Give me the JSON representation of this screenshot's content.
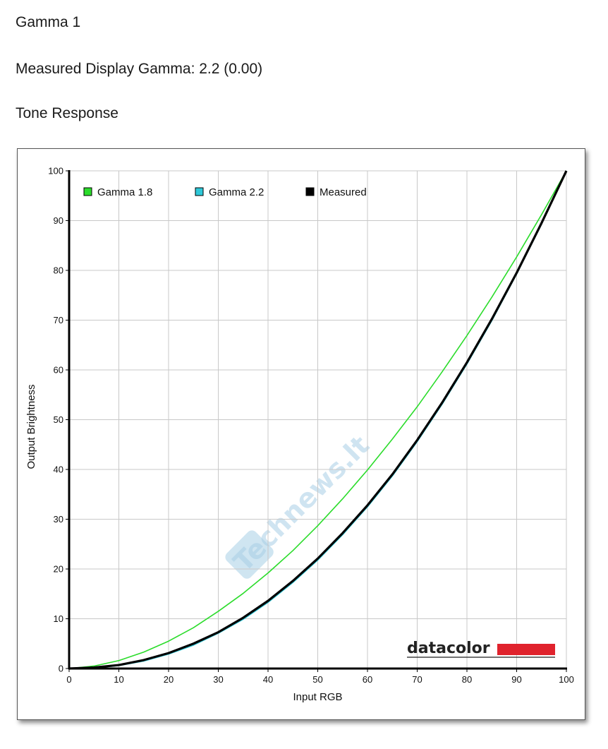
{
  "page": {
    "title": "Gamma 1",
    "measured_gamma": "Measured Display Gamma: 2.2 (0.00)",
    "section": "Tone Response"
  },
  "brand": {
    "logo_text": "datacolor",
    "logo_accent_color": "#e0232d"
  },
  "watermark": {
    "text": "Technews.lt",
    "color": "#a8cfe6"
  },
  "chart_data": {
    "type": "line",
    "xlabel": "Input RGB",
    "ylabel": "Output Brightness",
    "xlim": [
      0,
      100
    ],
    "ylim": [
      0,
      100
    ],
    "xticks": [
      0,
      10,
      20,
      30,
      40,
      50,
      60,
      70,
      80,
      90,
      100
    ],
    "yticks": [
      0,
      10,
      20,
      30,
      40,
      50,
      60,
      70,
      80,
      90,
      100
    ],
    "grid": true,
    "legend_position": "top-left",
    "x": [
      0,
      5,
      10,
      15,
      20,
      25,
      30,
      35,
      40,
      45,
      50,
      55,
      60,
      65,
      70,
      75,
      80,
      85,
      90,
      95,
      100
    ],
    "series": [
      {
        "name": "Gamma 1.8",
        "color": "#2bdc2b",
        "values": [
          0,
          0.5,
          1.6,
          3.3,
          5.5,
          8.2,
          11.5,
          15.1,
          19.2,
          23.7,
          28.7,
          34.1,
          39.9,
          46.1,
          52.6,
          59.6,
          66.9,
          74.6,
          82.7,
          91.2,
          100
        ]
      },
      {
        "name": "Gamma 2.2",
        "color": "#2ec8d8",
        "values": [
          0,
          0.1,
          0.6,
          1.5,
          2.9,
          4.7,
          7.1,
          9.9,
          13.3,
          17.3,
          21.8,
          26.9,
          32.5,
          38.7,
          45.6,
          53.1,
          61.2,
          69.9,
          79.3,
          89.3,
          100
        ]
      },
      {
        "name": "Measured",
        "color": "#000000",
        "values": [
          0,
          0.2,
          0.7,
          1.7,
          3.1,
          5.0,
          7.3,
          10.2,
          13.6,
          17.6,
          22.1,
          27.2,
          32.8,
          39.0,
          45.9,
          53.4,
          61.5,
          70.2,
          79.5,
          89.5,
          100
        ]
      }
    ]
  }
}
